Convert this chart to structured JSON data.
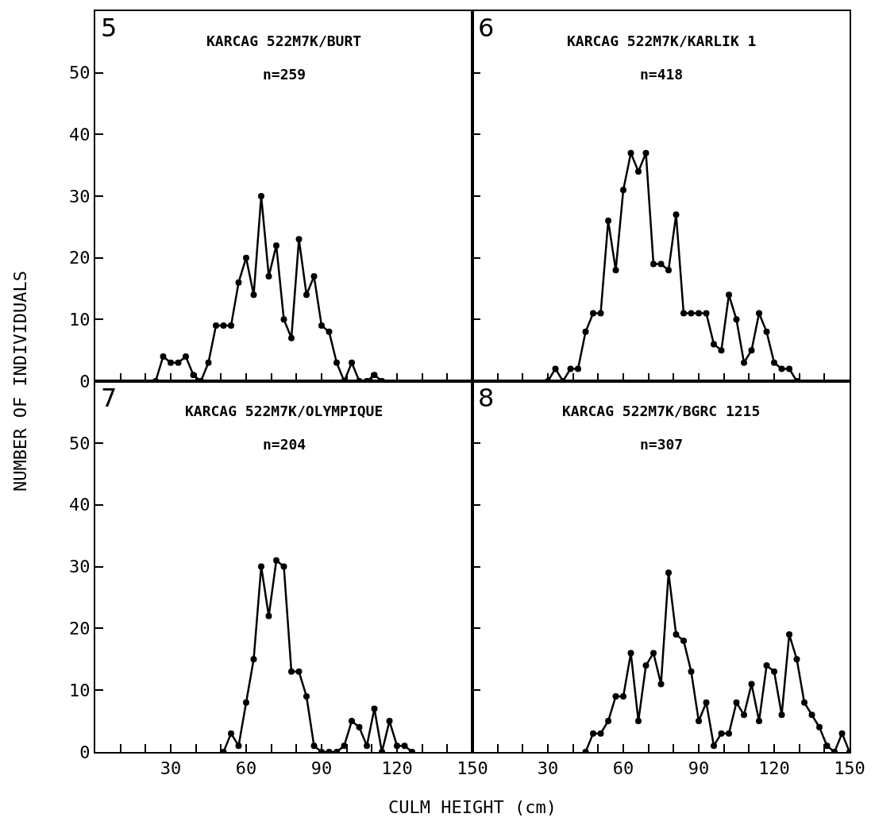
{
  "chart_data": [
    {
      "type": "line",
      "title": "KARCAG 522M7K/BURT",
      "subtitle": "n=259",
      "annotations": [
        "5"
      ],
      "ylabel": "NUMBER OF INDIVIDUALS",
      "x": [
        24,
        27,
        30,
        33,
        36,
        39,
        42,
        45,
        48,
        51,
        54,
        57,
        60,
        63,
        66,
        69,
        72,
        75,
        78,
        81,
        84,
        87,
        90,
        93,
        96,
        99,
        102,
        105,
        108,
        111,
        114
      ],
      "values": [
        0,
        4,
        3,
        3,
        4,
        1,
        0,
        3,
        9,
        9,
        9,
        16,
        20,
        14,
        30,
        17,
        22,
        10,
        7,
        23,
        14,
        17,
        9,
        8,
        3,
        0,
        3,
        0,
        0,
        1,
        0
      ],
      "color": "#000000",
      "marker": "circle",
      "xlim": [
        0,
        150
      ],
      "ylim": [
        0,
        60
      ],
      "xticks": [
        {
          "value": 10,
          "label": null
        },
        {
          "value": 20,
          "label": null
        },
        30,
        {
          "value": 40,
          "label": null
        },
        {
          "value": 50,
          "label": null
        },
        60,
        {
          "value": 70,
          "label": null
        },
        {
          "value": 80,
          "label": null
        },
        90,
        {
          "value": 100,
          "label": null
        },
        {
          "value": 110,
          "label": null
        },
        120,
        {
          "value": 130,
          "label": null
        },
        {
          "value": 140,
          "label": null
        },
        150
      ],
      "yticks": [
        0,
        10,
        20,
        30,
        40,
        50
      ],
      "tick_labels": "y"
    },
    {
      "type": "line",
      "title": "KARCAG 522M7K/KARLIK 1",
      "subtitle": "n=418",
      "annotations": [
        "6"
      ],
      "x": [
        30,
        33,
        36,
        39,
        42,
        45,
        48,
        51,
        54,
        57,
        60,
        63,
        66,
        69,
        72,
        75,
        78,
        81,
        84,
        87,
        90,
        93,
        96,
        99,
        102,
        105,
        108,
        111,
        114,
        117,
        120,
        123,
        126,
        129
      ],
      "values": [
        0,
        2,
        0,
        2,
        2,
        8,
        11,
        11,
        26,
        18,
        31,
        37,
        34,
        37,
        19,
        19,
        18,
        27,
        11,
        11,
        11,
        11,
        6,
        5,
        14,
        10,
        3,
        5,
        11,
        8,
        3,
        2,
        2,
        0
      ],
      "color": "#000000",
      "marker": "circle",
      "xlim": [
        0,
        150
      ],
      "ylim": [
        0,
        60
      ],
      "xticks": [
        {
          "value": 10,
          "label": null
        },
        {
          "value": 20,
          "label": null
        },
        30,
        {
          "value": 40,
          "label": null
        },
        {
          "value": 50,
          "label": null
        },
        60,
        {
          "value": 70,
          "label": null
        },
        {
          "value": 80,
          "label": null
        },
        90,
        {
          "value": 100,
          "label": null
        },
        {
          "value": 110,
          "label": null
        },
        120,
        {
          "value": 130,
          "label": null
        },
        {
          "value": 140,
          "label": null
        },
        150
      ],
      "yticks": [
        0,
        10,
        20,
        30,
        40,
        50
      ],
      "tick_labels": false
    },
    {
      "type": "line",
      "title": "KARCAG 522M7K/OLYMPIQUE",
      "subtitle": "n=204",
      "annotations": [
        "7"
      ],
      "xlabel": "CULM HEIGHT (cm)",
      "x": [
        51,
        54,
        57,
        60,
        63,
        66,
        69,
        72,
        75,
        78,
        81,
        84,
        87,
        90,
        93,
        96,
        99,
        102,
        105,
        108,
        111,
        114,
        117,
        120,
        123,
        126
      ],
      "values": [
        0,
        3,
        1,
        8,
        15,
        30,
        22,
        31,
        30,
        13,
        13,
        9,
        1,
        0,
        0,
        0,
        1,
        5,
        4,
        1,
        7,
        0,
        5,
        1,
        1,
        0
      ],
      "color": "#000000",
      "marker": "circle",
      "xlim": [
        0,
        150
      ],
      "ylim": [
        0,
        60
      ],
      "xticks": [
        {
          "value": 10,
          "label": null
        },
        {
          "value": 20,
          "label": null
        },
        30,
        {
          "value": 40,
          "label": null
        },
        {
          "value": 50,
          "label": null
        },
        60,
        {
          "value": 70,
          "label": null
        },
        {
          "value": 80,
          "label": null
        },
        90,
        {
          "value": 100,
          "label": null
        },
        {
          "value": 110,
          "label": null
        },
        120,
        {
          "value": 130,
          "label": null
        },
        {
          "value": 140,
          "label": null
        },
        150
      ],
      "yticks": [
        0,
        10,
        20,
        30,
        40,
        50
      ]
    },
    {
      "type": "line",
      "title": "KARCAG 522M7K/BGRC 1215",
      "subtitle": "n=307",
      "annotations": [
        "8"
      ],
      "x": [
        45,
        48,
        51,
        54,
        57,
        60,
        63,
        66,
        69,
        72,
        75,
        78,
        81,
        84,
        87,
        90,
        93,
        96,
        99,
        102,
        105,
        108,
        111,
        114,
        117,
        120,
        123,
        126,
        129,
        132,
        135,
        138,
        141,
        144,
        147,
        150
      ],
      "values": [
        0,
        3,
        3,
        5,
        9,
        9,
        16,
        5,
        14,
        16,
        11,
        29,
        19,
        18,
        13,
        5,
        8,
        1,
        3,
        3,
        8,
        6,
        11,
        5,
        14,
        13,
        6,
        19,
        15,
        8,
        6,
        4,
        1,
        0,
        3,
        0
      ],
      "color": "#000000",
      "marker": "circle",
      "xlim": [
        0,
        150
      ],
      "ylim": [
        0,
        60
      ],
      "xticks": [
        {
          "value": 10,
          "label": null
        },
        {
          "value": 20,
          "label": null
        },
        30,
        {
          "value": 40,
          "label": null
        },
        {
          "value": 50,
          "label": null
        },
        60,
        {
          "value": 70,
          "label": null
        },
        {
          "value": 80,
          "label": null
        },
        90,
        {
          "value": 100,
          "label": null
        },
        {
          "value": 110,
          "label": null
        },
        120,
        {
          "value": 130,
          "label": null
        },
        {
          "value": 140,
          "label": null
        },
        150
      ],
      "yticks": [
        0,
        10,
        20,
        30,
        40,
        50
      ],
      "tick_labels": "x"
    }
  ]
}
